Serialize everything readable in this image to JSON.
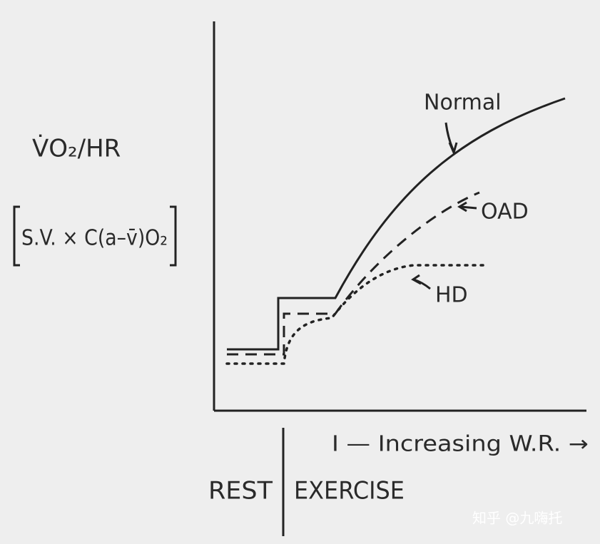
{
  "y_label": "V̇O₂/HR",
  "y_formula": "S.V. × C(a–v̄)O₂",
  "curves": {
    "normal": "Normal",
    "oad": "OAD",
    "hd": "HD"
  },
  "x_label": "I — Increasing W.R. →",
  "phases": {
    "rest": "REST",
    "exercise": "EXERCISE"
  },
  "watermark": "知乎 @九嗨托"
}
